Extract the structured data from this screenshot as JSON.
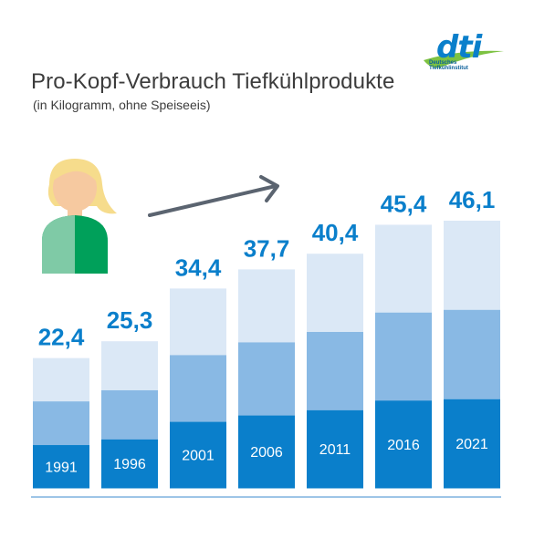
{
  "title": "Pro-Kopf-Verbrauch Tiefkühlprodukte",
  "subtitle": "(in Kilogramm, ohne Speiseeis)",
  "logo": {
    "brand": "dti",
    "tag_line1": "Deutsches",
    "tag_line2": "Tiefkühlinstitut"
  },
  "colors": {
    "dark": "#0a7fcb",
    "mid": "#89b9e4",
    "light": "#dbe8f6",
    "value_label": "#0a7fcb",
    "baseline": "#7fb2df",
    "arrow": "#5b6470"
  },
  "chart_data": {
    "type": "bar",
    "categories": [
      "1991",
      "1996",
      "2001",
      "2006",
      "2011",
      "2016",
      "2021"
    ],
    "values": [
      22.4,
      25.3,
      34.4,
      37.7,
      40.4,
      45.4,
      46.1
    ],
    "value_labels": [
      "22,4",
      "25,3",
      "34,4",
      "37,7",
      "40,4",
      "45,4",
      "46,1"
    ],
    "stacked_segments": 3,
    "title": "Pro-Kopf-Verbrauch Tiefkühlprodukte",
    "subtitle": "(in Kilogramm, ohne Speiseeis)",
    "xlabel": "",
    "ylabel": "",
    "ylim": [
      0,
      46.1
    ],
    "grid": false,
    "legend": "none"
  }
}
